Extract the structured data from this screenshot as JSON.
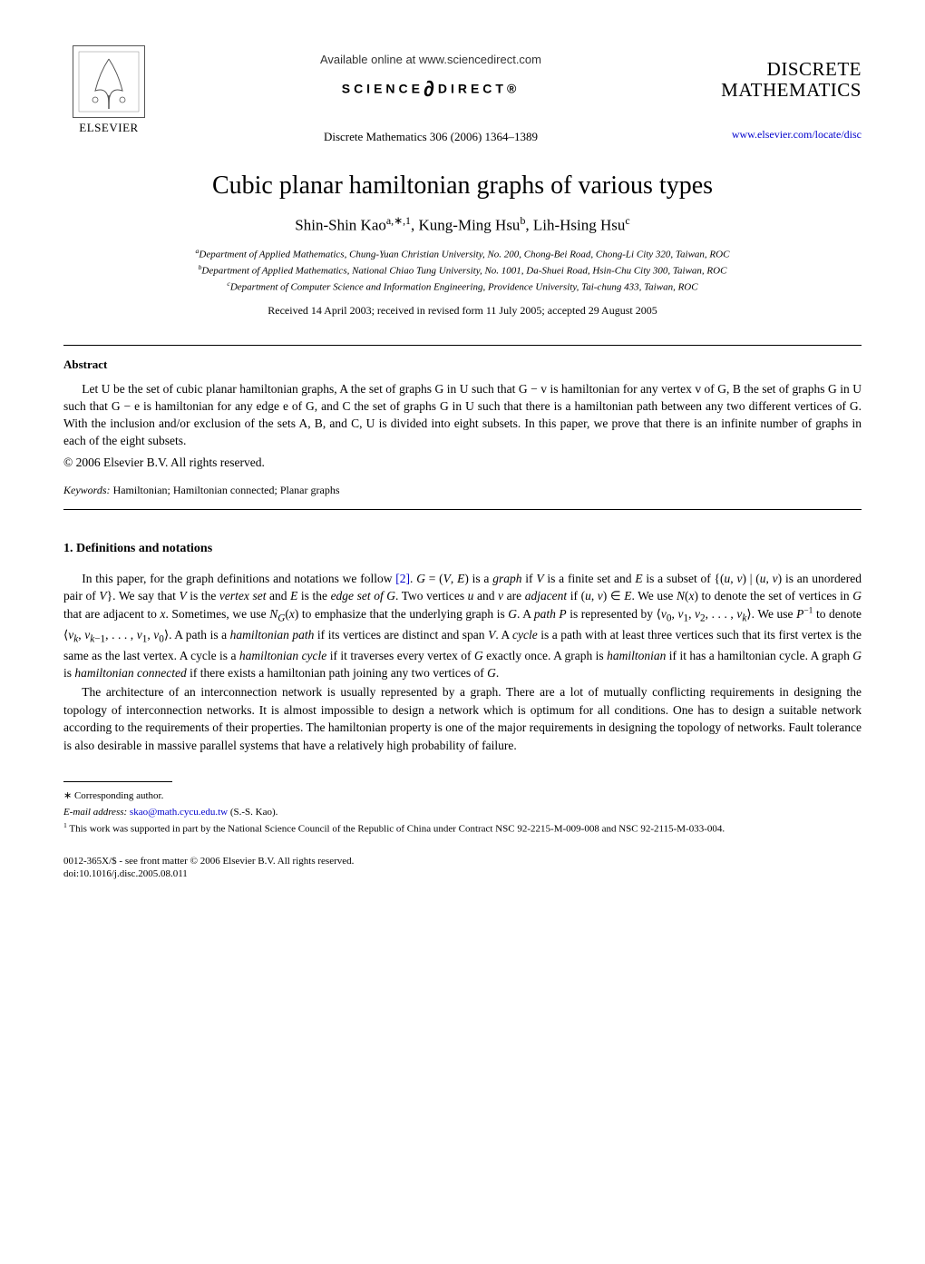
{
  "header": {
    "available_online": "Available online at www.sciencedirect.com",
    "sciencedirect_label": "SCIENCE",
    "sciencedirect_suffix": "DIRECT®",
    "journal_ref": "Discrete Mathematics 306 (2006) 1364–1389",
    "elsevier_label": "ELSEVIER",
    "journal_name_line1": "DISCRETE",
    "journal_name_line2": "MATHEMATICS",
    "journal_url": "www.elsevier.com/locate/disc"
  },
  "article": {
    "title": "Cubic planar hamiltonian graphs of various types",
    "authors_html": "Shin-Shin Kao<sup>a,∗,1</sup>, Kung-Ming Hsu<sup>b</sup>, Lih-Hsing Hsu<sup>c</sup>",
    "affiliation_a": "Department of Applied Mathematics, Chung-Yuan Christian University, No. 200, Chong-Bei Road, Chong-Li City 320, Taiwan, ROC",
    "affiliation_b": "Department of Applied Mathematics, National Chiao Tung University, No. 1001, Da-Shuei Road, Hsin-Chu City 300, Taiwan, ROC",
    "affiliation_c": "Department of Computer Science and Information Engineering, Providence University, Tai-chung 433, Taiwan, ROC",
    "dates": "Received 14 April 2003; received in revised form 11 July 2005; accepted 29 August 2005"
  },
  "abstract": {
    "heading": "Abstract",
    "text": "Let U be the set of cubic planar hamiltonian graphs, A the set of graphs G in U such that G − v is hamiltonian for any vertex v of G, B the set of graphs G in U such that G − e is hamiltonian for any edge e of G, and C the set of graphs G in U such that there is a hamiltonian path between any two different vertices of G. With the inclusion and/or exclusion of the sets A, B, and C, U is divided into eight subsets. In this paper, we prove that there is an infinite number of graphs in each of the eight subsets.",
    "copyright": "© 2006 Elsevier B.V. All rights reserved."
  },
  "keywords": {
    "label": "Keywords:",
    "text": " Hamiltonian; Hamiltonian connected; Planar graphs"
  },
  "section1": {
    "heading": "1.  Definitions and notations",
    "para1_html": "In this paper, for the graph definitions and notations we follow <span class=\"ref-link\">[2]</span>. <i>G</i> = (<i>V</i>, <i>E</i>) is a <i>graph</i> if <i>V</i> is a finite set and <i>E</i> is a subset of {(<i>u</i>, <i>v</i>) | (<i>u</i>, <i>v</i>) is an unordered pair of <i>V</i>}. We say that <i>V</i> is the <i>vertex set</i> and <i>E</i> is the <i>edge set of G</i>. Two vertices <i>u</i> and <i>v</i> are <i>adjacent</i> if (<i>u</i>, <i>v</i>) ∈ <i>E</i>. We use <i>N</i>(<i>x</i>) to denote the set of vertices in <i>G</i> that are adjacent to <i>x</i>. Sometimes, we use <i>N<sub>G</sub></i>(<i>x</i>) to emphasize that the underlying graph is <i>G</i>. A <i>path P</i> is represented by ⟨<i>v</i><sub>0</sub>, <i>v</i><sub>1</sub>, <i>v</i><sub>2</sub>, . . . , <i>v<sub>k</sub></i>⟩. We use <i>P</i><sup>−1</sup> to denote ⟨<i>v<sub>k</sub></i>, <i>v</i><sub><i>k</i>−1</sub>, . . . , <i>v</i><sub>1</sub>, <i>v</i><sub>0</sub>⟩. A path is a <i>hamiltonian path</i> if its vertices are distinct and span <i>V</i>. A <i>cycle</i> is a path with at least three vertices such that its first vertex is the same as the last vertex. A cycle is a <i>hamiltonian cycle</i> if it traverses every vertex of <i>G</i> exactly once. A graph is <i>hamiltonian</i> if it has a hamiltonian cycle. A graph <i>G</i> is <i>hamiltonian connected</i> if there exists a hamiltonian path joining any two vertices of <i>G</i>.",
    "para2": "The architecture of an interconnection network is usually represented by a graph. There are a lot of mutually conflicting requirements in designing the topology of interconnection networks. It is almost impossible to design a network which is optimum for all conditions. One has to design a suitable network according to the requirements of their properties. The hamiltonian property is one of the major requirements in designing the topology of networks. Fault tolerance is also desirable in massive parallel systems that have a relatively high probability of failure."
  },
  "footnotes": {
    "corresponding": "∗ Corresponding author.",
    "email_label": "E-mail address:",
    "email": "skao@math.cycu.edu.tw",
    "email_suffix": " (S.-S. Kao).",
    "funding": "This work was supported in part by the National Science Council of the Republic of China under Contract NSC 92-2215-M-009-008 and NSC 92-2115-M-033-004."
  },
  "bottom": {
    "line1": "0012-365X/$ - see front matter © 2006 Elsevier B.V. All rights reserved.",
    "line2": "doi:10.1016/j.disc.2005.08.011"
  },
  "styles": {
    "page_bg": "#ffffff",
    "text_color": "#000000",
    "link_color": "#0000cc",
    "title_fontsize": 28,
    "body_fontsize": 13.5,
    "footnote_fontsize": 11
  }
}
